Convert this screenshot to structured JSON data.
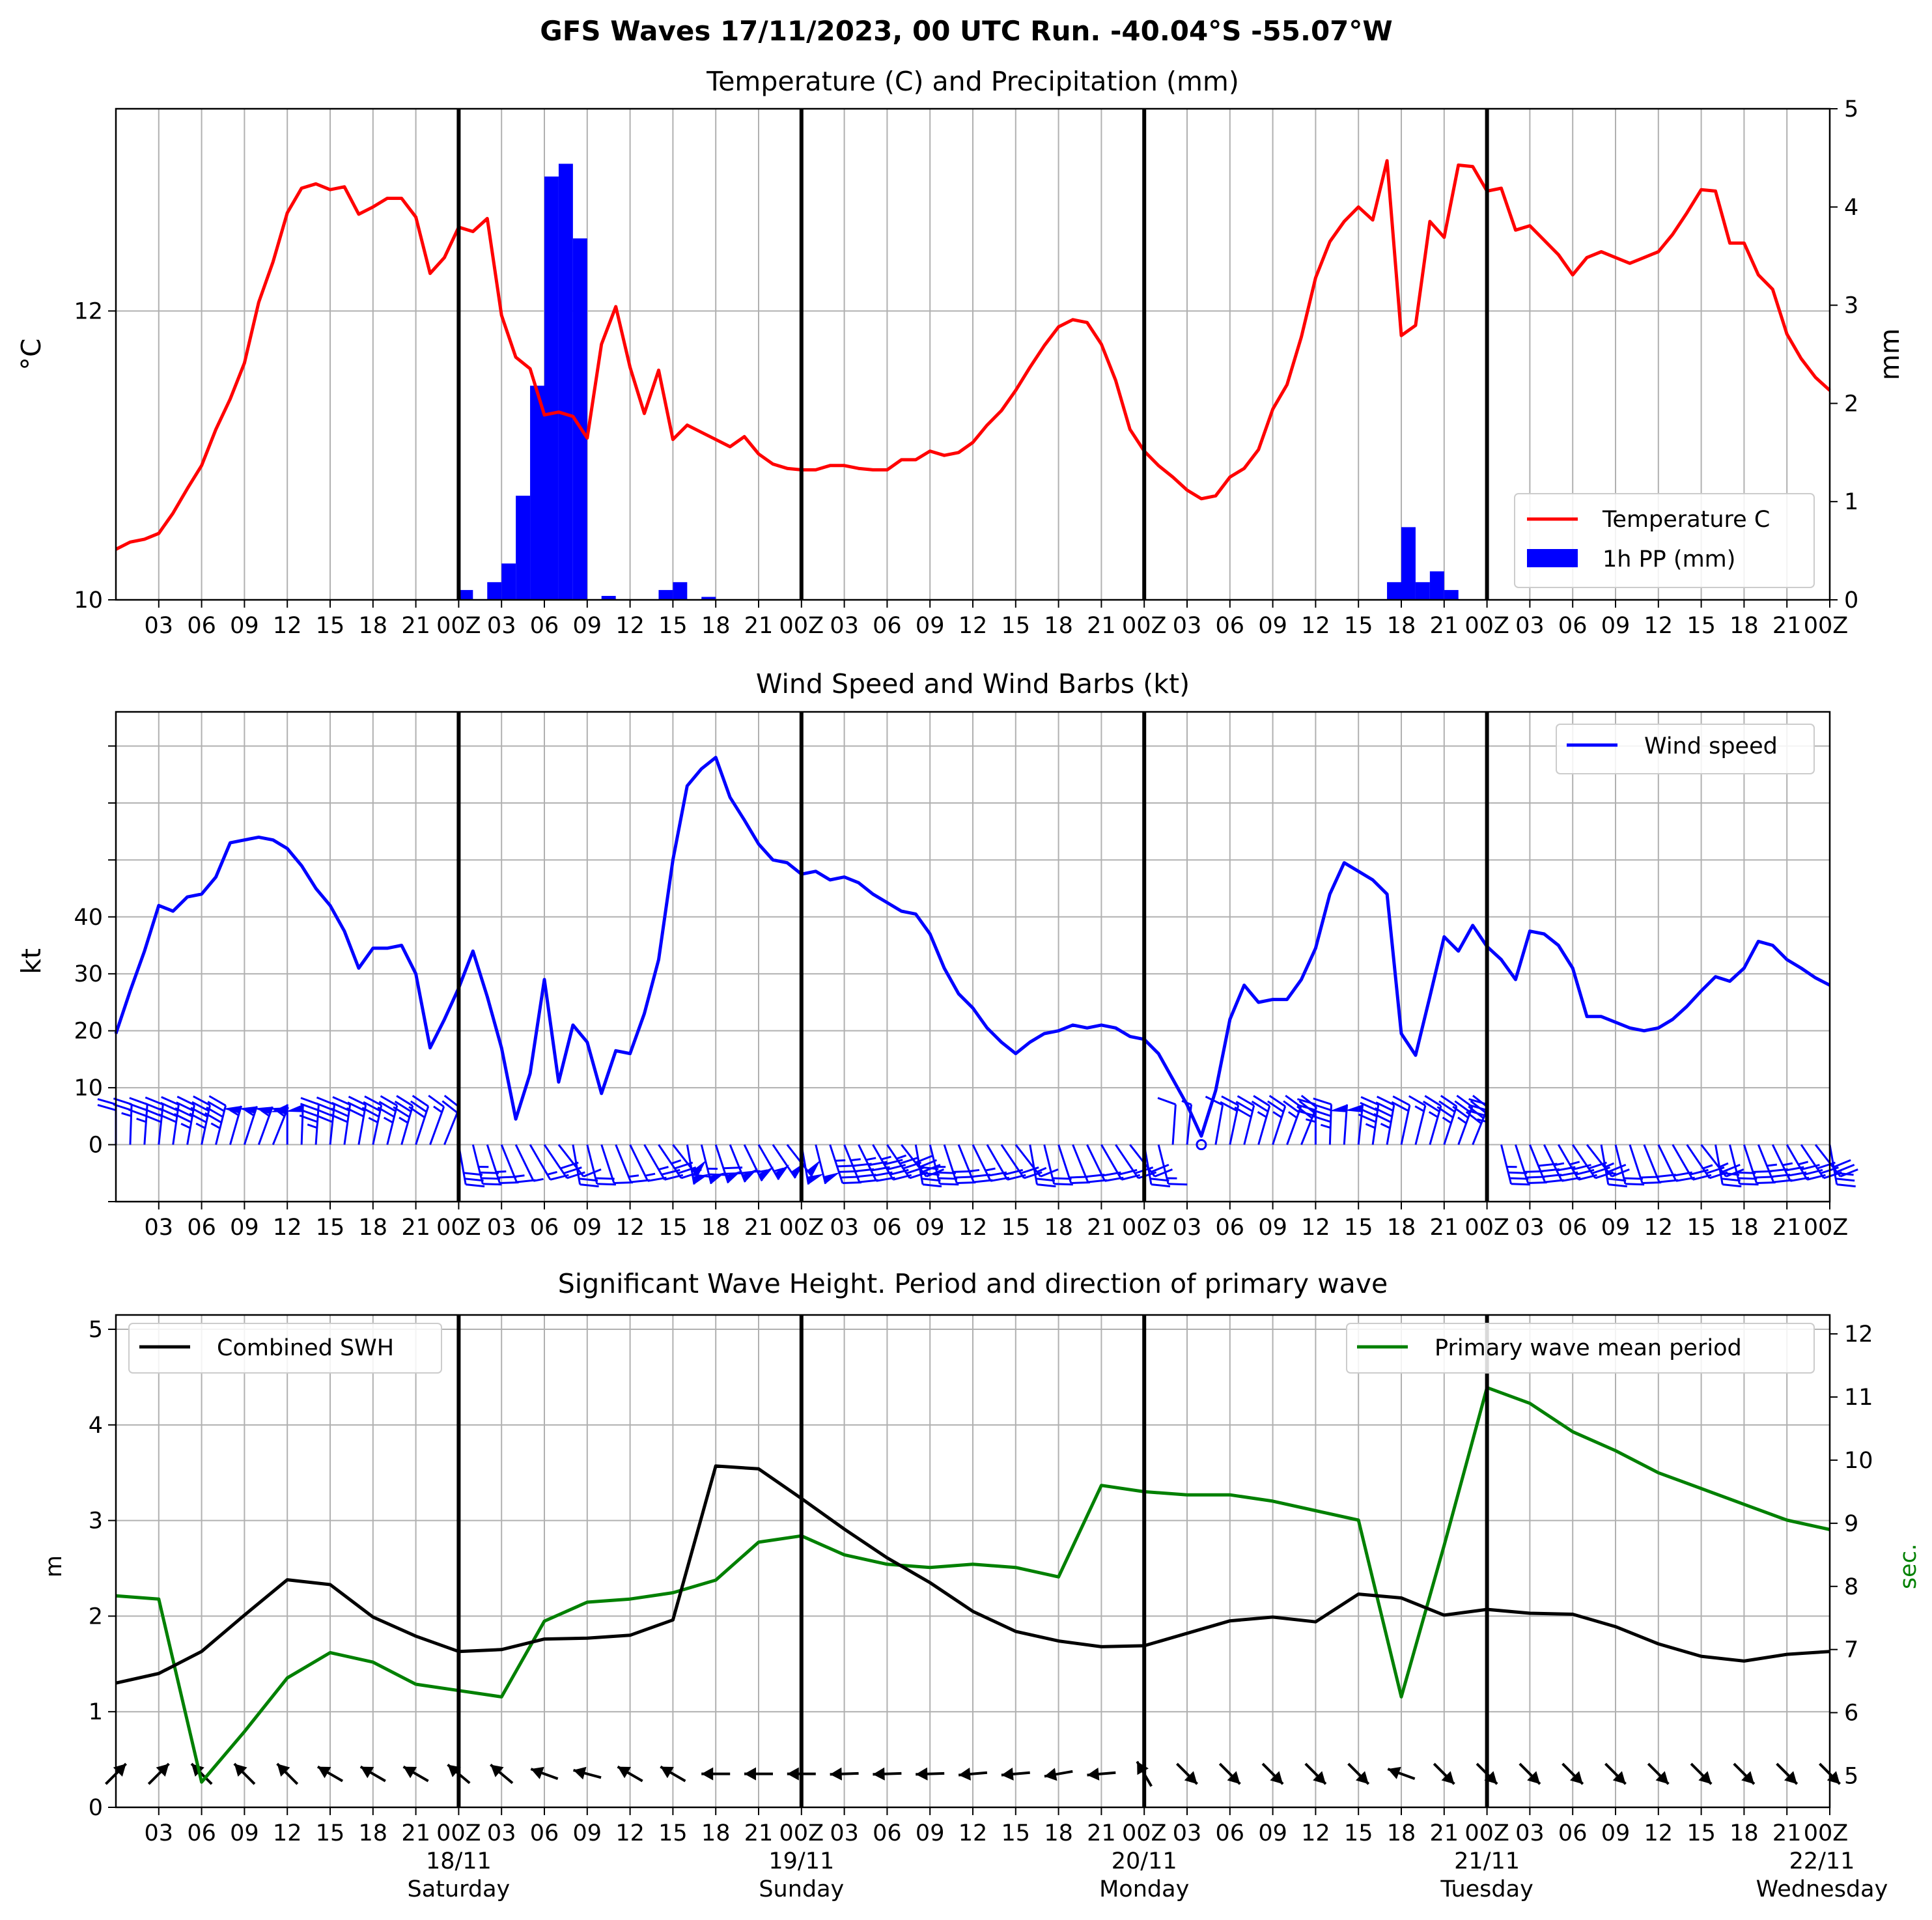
{
  "figure_title": "GFS Waves 17/11/2023, 00 UTC Run. -40.04°S -55.07°W",
  "colors": {
    "temperature": "#ff0000",
    "precip": "#0000ff",
    "wind": "#0000ff",
    "swh": "#000000",
    "period": "#008000"
  },
  "hour_ticks": [
    "03",
    "06",
    "09",
    "12",
    "15",
    "18",
    "21",
    "00Z",
    "03",
    "06",
    "09",
    "12",
    "15",
    "18",
    "21",
    "00Z",
    "03",
    "06",
    "09",
    "12",
    "15",
    "18",
    "21",
    "00Z",
    "03",
    "06",
    "09",
    "12",
    "15",
    "18",
    "21",
    "00Z",
    "03",
    "06",
    "09",
    "12",
    "15",
    "18",
    "21",
    "00Z"
  ],
  "date_labels": [
    {
      "hour": 24,
      "date": "18/11",
      "day": "Saturday"
    },
    {
      "hour": 48,
      "date": "19/11",
      "day": "Sunday"
    },
    {
      "hour": 72,
      "date": "20/11",
      "day": "Monday"
    },
    {
      "hour": 96,
      "date": "21/11",
      "day": "Tuesday"
    },
    {
      "hour": 120,
      "date": "22/11",
      "day": "Wednesday"
    }
  ],
  "chart_data": [
    {
      "type": "line",
      "title": "Temperature (C) and Precipitation (mm)",
      "ylabel": "$^\\circ$C",
      "y2label": "mm",
      "x_unit": "forecast hours from 17/11/2023 00 UTC",
      "xlim": [
        0,
        120
      ],
      "ylim": [
        10,
        13.4
      ],
      "yticks": [
        10,
        12
      ],
      "y2lim": [
        0,
        5
      ],
      "y2ticks": [
        0,
        1,
        2,
        3,
        4,
        5
      ],
      "legend_position": "lower-right",
      "series": [
        {
          "name": "Temperature C",
          "x": [
            0,
            1,
            2,
            3,
            4,
            5,
            6,
            7,
            8,
            9,
            10,
            11,
            12,
            13,
            14,
            15,
            16,
            17,
            18,
            19,
            20,
            21,
            22,
            23,
            24,
            25,
            26,
            27,
            28,
            29,
            30,
            31,
            32,
            33,
            34,
            35,
            36,
            37,
            38,
            39,
            40,
            41,
            42,
            43,
            44,
            45,
            46,
            47,
            48,
            49,
            50,
            51,
            52,
            53,
            54,
            55,
            56,
            57,
            58,
            59,
            60,
            61,
            62,
            63,
            64,
            65,
            66,
            67,
            68,
            69,
            70,
            71,
            72,
            73,
            74,
            75,
            76,
            77,
            78,
            79,
            80,
            81,
            82,
            83,
            84,
            85,
            86,
            87,
            88,
            89,
            90,
            91,
            92,
            93,
            94,
            95,
            96,
            97,
            98,
            99,
            100,
            101,
            102,
            103,
            104,
            105,
            106,
            107,
            108,
            109,
            110,
            111,
            112,
            113,
            114,
            115,
            116,
            117,
            118,
            119,
            120
          ],
          "values": [
            10.35,
            10.4,
            10.42,
            10.46,
            10.6,
            10.77,
            10.93,
            11.18,
            11.39,
            11.64,
            12.06,
            12.34,
            12.68,
            12.85,
            12.88,
            12.84,
            12.86,
            12.67,
            12.72,
            12.78,
            12.78,
            12.65,
            12.26,
            12.37,
            12.58,
            12.55,
            12.64,
            11.97,
            11.68,
            11.6,
            11.28,
            11.3,
            11.27,
            11.12,
            11.77,
            12.03,
            11.61,
            11.29,
            11.59,
            11.11,
            11.21,
            11.16,
            11.11,
            11.06,
            11.13,
            11.01,
            10.94,
            10.91,
            10.9,
            10.9,
            10.93,
            10.93,
            10.91,
            10.9,
            10.9,
            10.97,
            10.97,
            11.03,
            11.0,
            11.02,
            11.09,
            11.21,
            11.31,
            11.45,
            11.61,
            11.76,
            11.89,
            11.94,
            11.92,
            11.77,
            11.52,
            11.18,
            11.03,
            10.93,
            10.85,
            10.76,
            10.7,
            10.72,
            10.85,
            10.91,
            11.04,
            11.32,
            11.49,
            11.82,
            12.23,
            12.48,
            12.62,
            12.72,
            12.63,
            13.04,
            11.83,
            11.9,
            12.62,
            12.51,
            13.01,
            13.0,
            12.83,
            12.85,
            12.56,
            12.59,
            12.49,
            12.39,
            12.25,
            12.37,
            12.41,
            12.37,
            12.33,
            12.37,
            12.41,
            12.53,
            12.68,
            12.84,
            12.83,
            12.47,
            12.47,
            12.25,
            12.15,
            11.84,
            11.67,
            11.54,
            11.45
          ]
        },
        {
          "name": "1h PP (mm)",
          "type": "bar",
          "x": [
            24,
            26,
            27,
            28,
            29,
            30,
            31,
            32,
            34,
            38,
            39,
            41,
            89,
            90,
            91,
            92,
            93
          ],
          "values": [
            0.1,
            0.18,
            0.37,
            1.06,
            2.18,
            4.31,
            4.44,
            3.68,
            0.04,
            0.1,
            0.18,
            0.03,
            0.18,
            0.74,
            0.18,
            0.29,
            0.1
          ]
        }
      ]
    },
    {
      "type": "line",
      "title": "Wind Speed and Wind Barbs (kt)",
      "ylabel": "kt",
      "xlim": [
        0,
        120
      ],
      "ylim": [
        -10,
        76
      ],
      "yticks": [
        0,
        10,
        20,
        30,
        40
      ],
      "legend_position": "upper-right",
      "series": [
        {
          "name": "Wind speed",
          "x": [
            0,
            1,
            2,
            3,
            4,
            5,
            6,
            7,
            8,
            9,
            10,
            11,
            12,
            13,
            14,
            15,
            16,
            17,
            18,
            19,
            20,
            21,
            22,
            23,
            24,
            25,
            26,
            27,
            28,
            29,
            30,
            31,
            32,
            33,
            34,
            35,
            36,
            37,
            38,
            39,
            40,
            41,
            42,
            43,
            44,
            45,
            46,
            47,
            48,
            49,
            50,
            51,
            52,
            53,
            54,
            55,
            56,
            57,
            58,
            59,
            60,
            61,
            62,
            63,
            64,
            65,
            66,
            67,
            68,
            69,
            70,
            71,
            72,
            73,
            74,
            75,
            76,
            77,
            78,
            79,
            80,
            81,
            82,
            83,
            84,
            85,
            86,
            87,
            88,
            89,
            90,
            91,
            92,
            93,
            94,
            95,
            96,
            97,
            98,
            99,
            100,
            101,
            102,
            103,
            104,
            105,
            106,
            107,
            108,
            109,
            110,
            111,
            112,
            113,
            114,
            115,
            116,
            117,
            118,
            119,
            120
          ],
          "values": [
            19.5,
            27,
            34,
            42,
            41,
            43.5,
            44,
            47,
            53,
            53.5,
            54,
            53.5,
            52,
            49,
            45,
            42,
            37.5,
            31,
            34.5,
            34.5,
            35,
            30,
            17,
            22,
            27.5,
            34,
            26,
            17,
            4.5,
            12.5,
            29,
            11,
            21,
            18,
            9,
            16.5,
            16,
            23,
            32.5,
            50,
            63,
            66,
            68,
            61,
            57,
            52.8,
            50,
            49.5,
            47.5,
            48,
            46.5,
            47,
            46,
            44,
            42.5,
            41,
            40.5,
            37,
            31,
            26.5,
            24,
            20.5,
            18,
            16,
            18,
            19.5,
            20,
            21,
            20.5,
            21,
            20.5,
            19,
            18.5,
            16,
            11.5,
            7,
            1.5,
            9.5,
            22,
            28,
            25,
            25.5,
            25.5,
            29,
            34.5,
            44,
            49.5,
            48,
            46.5,
            44,
            19.5,
            15.7,
            26,
            36.5,
            34,
            38.5,
            34.8,
            32.5,
            29,
            37.5,
            37,
            35,
            31,
            22.5,
            22.5,
            21.5,
            20.5,
            20,
            20.5,
            22,
            24.3,
            27,
            29.5,
            28.7,
            31,
            35.7,
            35,
            32.5,
            31,
            29.3,
            28
          ]
        }
      ]
    },
    {
      "type": "line",
      "title": "Significant Wave Height. Period and direction of primary wave",
      "ylabel": "m",
      "y2label": "sec.",
      "xlim": [
        0,
        120
      ],
      "ylim": [
        0,
        5.15
      ],
      "yticks": [
        0,
        1,
        2,
        3,
        4,
        5
      ],
      "y2lim": [
        4.5,
        12.3
      ],
      "y2ticks": [
        5,
        6,
        7,
        8,
        9,
        10,
        11,
        12
      ],
      "series": [
        {
          "name": "Combined SWH",
          "axis": "left",
          "x": [
            0,
            3,
            6,
            9,
            12,
            15,
            18,
            21,
            24,
            27,
            30,
            33,
            36,
            39,
            42,
            45,
            48,
            51,
            54,
            57,
            60,
            63,
            66,
            69,
            72,
            75,
            78,
            81,
            84,
            87,
            90,
            93,
            96,
            99,
            102,
            105,
            108,
            111,
            114,
            117,
            120
          ],
          "values": [
            1.3,
            1.4,
            1.63,
            2.01,
            2.38,
            2.33,
            1.99,
            1.79,
            1.63,
            1.65,
            1.76,
            1.77,
            1.8,
            1.96,
            3.57,
            3.54,
            3.23,
            2.91,
            2.61,
            2.35,
            2.05,
            1.84,
            1.74,
            1.68,
            1.69,
            1.82,
            1.95,
            1.99,
            1.94,
            2.23,
            2.19,
            2.01,
            2.07,
            2.03,
            2.02,
            1.89,
            1.71,
            1.58,
            1.53,
            1.6,
            1.63
          ]
        },
        {
          "name": "Primary wave mean period",
          "axis": "right",
          "x": [
            0,
            3,
            6,
            9,
            12,
            15,
            18,
            21,
            24,
            27,
            30,
            33,
            36,
            39,
            42,
            45,
            48,
            51,
            54,
            57,
            60,
            63,
            66,
            69,
            72,
            75,
            78,
            81,
            84,
            87,
            90,
            93,
            96,
            99,
            102,
            105,
            108,
            111,
            114,
            117,
            120
          ],
          "values": [
            7.85,
            7.8,
            4.9,
            5.7,
            6.55,
            6.95,
            6.8,
            6.45,
            6.35,
            6.25,
            7.45,
            7.75,
            7.8,
            7.9,
            8.1,
            8.7,
            8.8,
            8.5,
            8.35,
            8.3,
            8.35,
            8.3,
            8.15,
            9.6,
            9.5,
            9.45,
            9.45,
            9.35,
            9.2,
            9.05,
            6.25,
            8.65,
            11.15,
            10.9,
            10.45,
            10.15,
            9.8,
            9.55,
            9.3,
            9.05,
            8.9
          ]
        }
      ],
      "primary_wave_direction_arrows": {
        "x": [
          0,
          3,
          6,
          9,
          12,
          15,
          18,
          21,
          24,
          27,
          30,
          33,
          36,
          39,
          42,
          45,
          48,
          51,
          54,
          57,
          60,
          63,
          66,
          69,
          72,
          75,
          78,
          81,
          84,
          87,
          90,
          93,
          96,
          99,
          102,
          105,
          108,
          111,
          114,
          117,
          120
        ],
        "direction_deg_compass": [
          45,
          45,
          315,
          315,
          315,
          300,
          300,
          300,
          310,
          310,
          290,
          285,
          300,
          300,
          270,
          270,
          270,
          268,
          268,
          268,
          265,
          265,
          260,
          265,
          330,
          135,
          135,
          135,
          135,
          135,
          290,
          135,
          135,
          135,
          135,
          135,
          135,
          135,
          135,
          135,
          135
        ],
        "arrow_y": 0.35
      }
    }
  ]
}
